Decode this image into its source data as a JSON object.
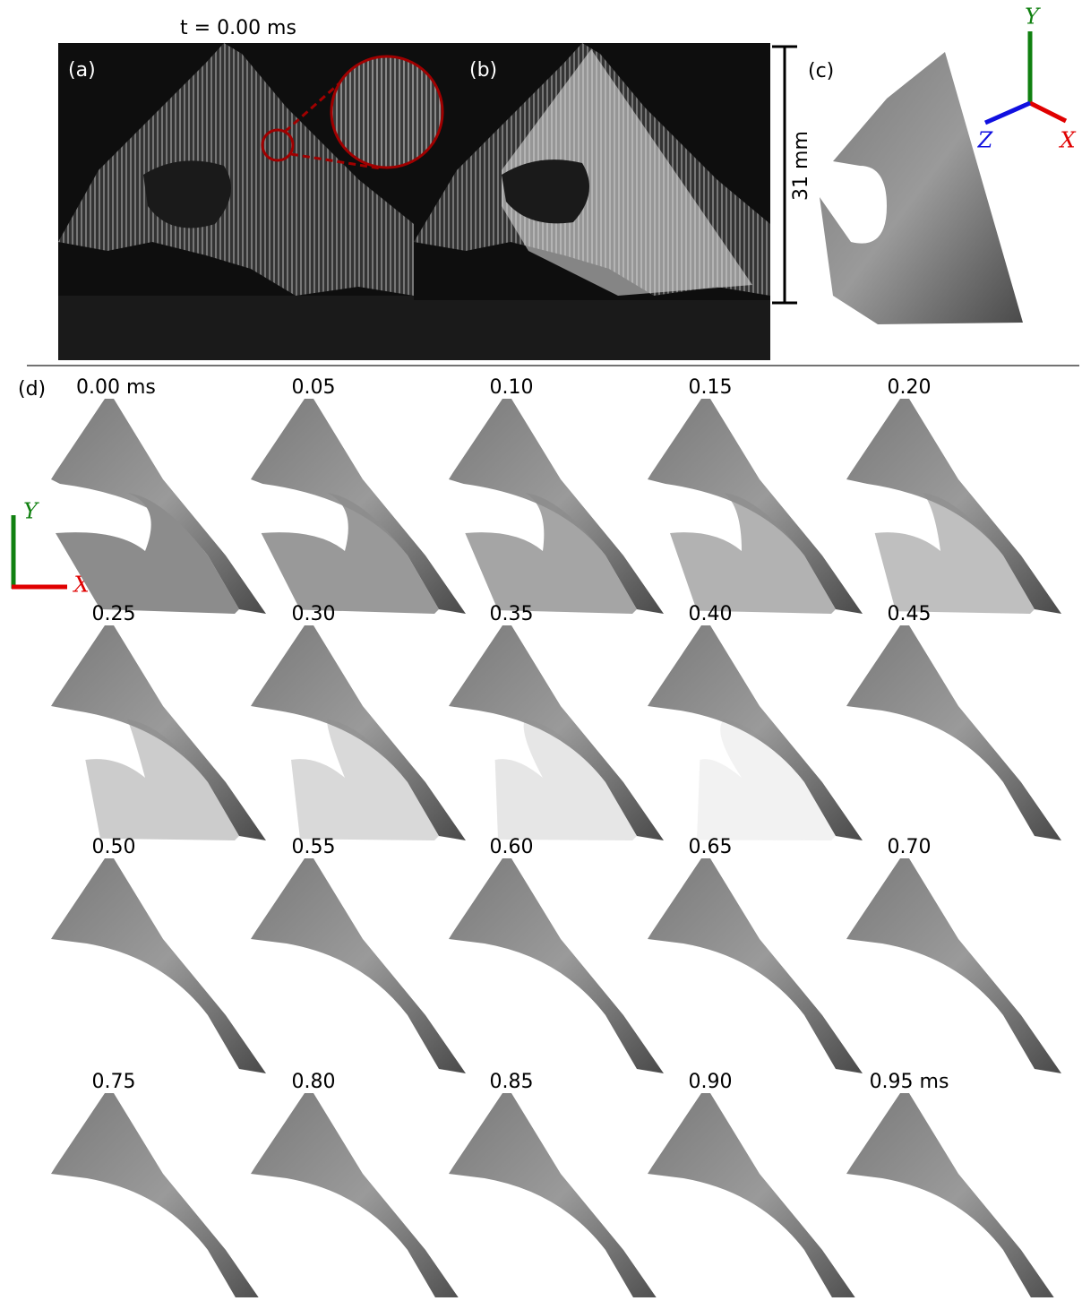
{
  "top": {
    "time_label": "t = 0.00 ms",
    "panels": [
      "(a)",
      "(b)",
      "(c)"
    ],
    "scale_label": "31 mm",
    "axes": [
      "Y",
      "Z",
      "X"
    ]
  },
  "sequence": {
    "panel": "(d)",
    "frames": [
      "0.00 ms",
      "0.05",
      "0.10",
      "0.15",
      "0.20",
      "0.25",
      "0.30",
      "0.35",
      "0.40",
      "0.45",
      "0.50",
      "0.55",
      "0.60",
      "0.65",
      "0.70",
      "0.75",
      "0.80",
      "0.85",
      "0.90",
      "0.95 ms"
    ],
    "axes": [
      "Y",
      "X"
    ]
  }
}
